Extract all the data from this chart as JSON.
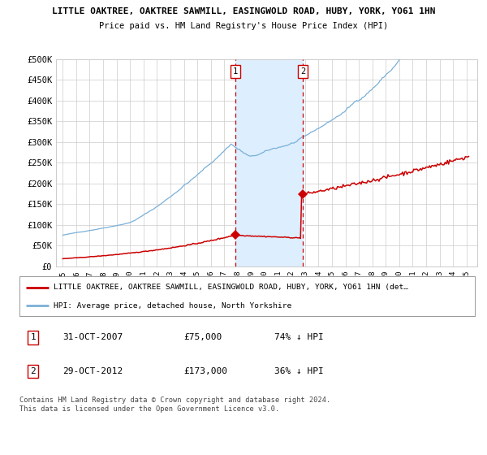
{
  "title1": "LITTLE OAKTREE, OAKTREE SAWMILL, EASINGWOLD ROAD, HUBY, YORK, YO61 1HN",
  "title2": "Price paid vs. HM Land Registry's House Price Index (HPI)",
  "ylim": [
    0,
    500000
  ],
  "yticks": [
    0,
    50000,
    100000,
    150000,
    200000,
    250000,
    300000,
    350000,
    400000,
    450000,
    500000
  ],
  "ytick_labels": [
    "£0",
    "£50K",
    "£100K",
    "£150K",
    "£200K",
    "£250K",
    "£300K",
    "£350K",
    "£400K",
    "£450K",
    "£500K"
  ],
  "hpi_color": "#7ab0d8",
  "price_color": "#cc0000",
  "transaction1_date": 2007.83,
  "transaction1_price": 75000,
  "transaction2_date": 2012.83,
  "transaction2_price": 173000,
  "legend_property": "LITTLE OAKTREE, OAKTREE SAWMILL, EASINGWOLD ROAD, HUBY, YORK, YO61 1HN (det…",
  "legend_hpi": "HPI: Average price, detached house, North Yorkshire",
  "table_rows": [
    {
      "num": "1",
      "date": "31-OCT-2007",
      "price": "£75,000",
      "pct": "74% ↓ HPI"
    },
    {
      "num": "2",
      "date": "29-OCT-2012",
      "price": "£173,000",
      "pct": "36% ↓ HPI"
    }
  ],
  "footnote": "Contains HM Land Registry data © Crown copyright and database right 2024.\nThis data is licensed under the Open Government Licence v3.0.",
  "bg_color": "#ffffff",
  "grid_color": "#cccccc",
  "shade_color": "#ddeeff",
  "xtick_years": [
    1995,
    1996,
    1997,
    1998,
    1999,
    2000,
    2001,
    2002,
    2003,
    2004,
    2005,
    2006,
    2007,
    2008,
    2009,
    2010,
    2011,
    2012,
    2013,
    2014,
    2015,
    2016,
    2017,
    2018,
    2019,
    2020,
    2021,
    2022,
    2023,
    2024,
    2025
  ],
  "xlim_left": 1994.5,
  "xlim_right": 2025.8
}
